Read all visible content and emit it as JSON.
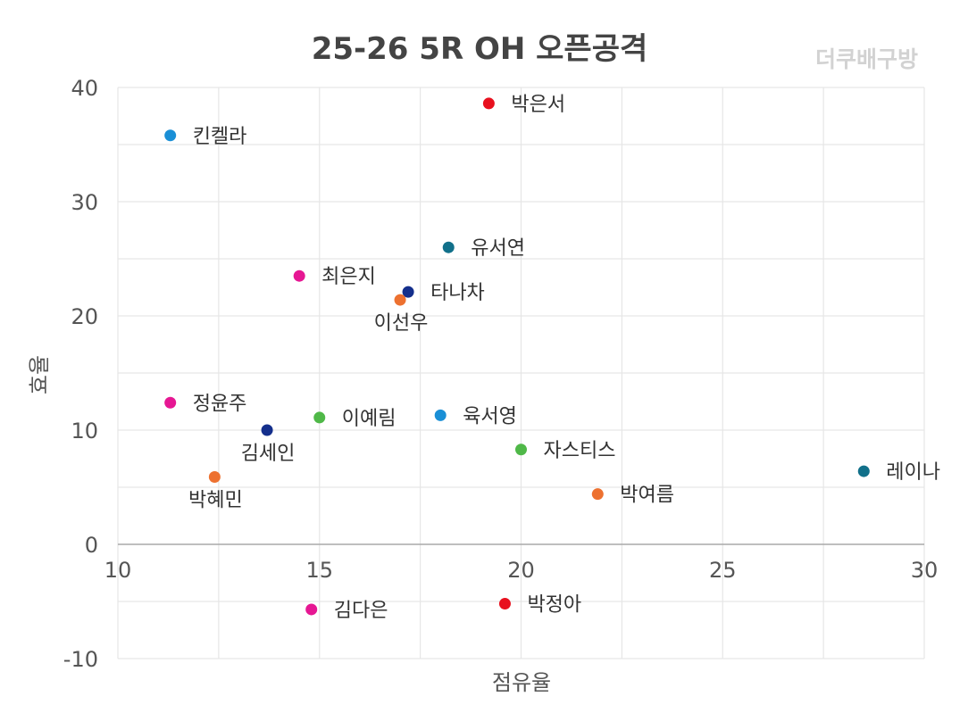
{
  "watermark": "더쿠배구방",
  "chart_data": {
    "type": "scatter",
    "title": "25-26 5R OH 오픈공격",
    "xlabel": "점유율",
    "ylabel": "효율",
    "xlim": [
      10,
      30
    ],
    "ylim": [
      -10,
      40
    ],
    "x_ticks": [
      "10",
      "15",
      "20",
      "25",
      "30"
    ],
    "y_ticks": [
      "-10",
      "0",
      "10",
      "20",
      "30",
      "40"
    ],
    "grid": true,
    "points": [
      {
        "name": "박은서",
        "x": 19.2,
        "y": 38.6,
        "color": "#e8101e",
        "label_pos": "right"
      },
      {
        "name": "킨켈라",
        "x": 11.3,
        "y": 35.8,
        "color": "#1a8fd6",
        "label_pos": "right"
      },
      {
        "name": "유서연",
        "x": 18.2,
        "y": 26.0,
        "color": "#11708a",
        "label_pos": "right"
      },
      {
        "name": "최은지",
        "x": 14.5,
        "y": 23.5,
        "color": "#e61793",
        "label_pos": "right"
      },
      {
        "name": "타나차",
        "x": 17.2,
        "y": 22.1,
        "color": "#142f8c",
        "label_pos": "right"
      },
      {
        "name": "이선우",
        "x": 17.0,
        "y": 21.4,
        "color": "#ed7130",
        "label_pos": "below"
      },
      {
        "name": "정윤주",
        "x": 11.3,
        "y": 12.4,
        "color": "#e61793",
        "label_pos": "right"
      },
      {
        "name": "이예림",
        "x": 15.0,
        "y": 11.1,
        "color": "#4fb848",
        "label_pos": "right"
      },
      {
        "name": "육서영",
        "x": 18.0,
        "y": 11.3,
        "color": "#1a8fd6",
        "label_pos": "right"
      },
      {
        "name": "김세인",
        "x": 13.7,
        "y": 10.0,
        "color": "#142f8c",
        "label_pos": "below"
      },
      {
        "name": "자스티스",
        "x": 20.0,
        "y": 8.3,
        "color": "#4fb848",
        "label_pos": "right"
      },
      {
        "name": "레이나",
        "x": 28.5,
        "y": 6.4,
        "color": "#11708a",
        "label_pos": "right"
      },
      {
        "name": "박혜민",
        "x": 12.4,
        "y": 5.9,
        "color": "#ed7130",
        "label_pos": "below"
      },
      {
        "name": "박여름",
        "x": 21.9,
        "y": 4.4,
        "color": "#ed7130",
        "label_pos": "right"
      },
      {
        "name": "박정아",
        "x": 19.6,
        "y": -5.2,
        "color": "#e8101e",
        "label_pos": "right"
      },
      {
        "name": "김다은",
        "x": 14.8,
        "y": -5.7,
        "color": "#e61793",
        "label_pos": "right"
      }
    ]
  }
}
